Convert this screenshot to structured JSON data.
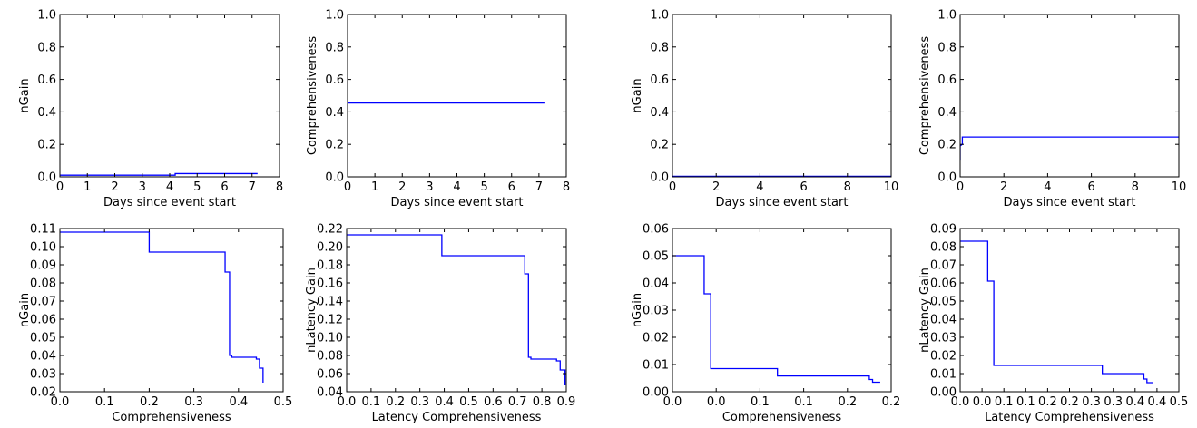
{
  "colors": {
    "series": "#0000ff",
    "axes": "#000000",
    "background": "#ffffff"
  },
  "chart_data": [
    {
      "type": "line",
      "xlabel": "Days since event start",
      "ylabel": "nGain",
      "xlim": [
        0,
        8
      ],
      "ylim": [
        0,
        1.0
      ],
      "xticks": [
        0,
        1,
        2,
        3,
        4,
        5,
        6,
        7,
        8
      ],
      "xtick_labels": [
        "0",
        "1",
        "2",
        "3",
        "4",
        "5",
        "6",
        "7",
        "8"
      ],
      "yticks": [
        0,
        0.2,
        0.4,
        0.6,
        0.8,
        1.0
      ],
      "ytick_labels": [
        "0.0",
        "0.2",
        "0.4",
        "0.6",
        "0.8",
        "1.0"
      ],
      "grid": false,
      "series": [
        {
          "x": [
            0,
            4.2,
            4.2,
            7.2
          ],
          "y": [
            0.01,
            0.01,
            0.02,
            0.02
          ]
        }
      ]
    },
    {
      "type": "line",
      "xlabel": "Days since event start",
      "ylabel": "Comprehensiveness",
      "xlim": [
        0,
        8
      ],
      "ylim": [
        0,
        1.0
      ],
      "xticks": [
        0,
        1,
        2,
        3,
        4,
        5,
        6,
        7,
        8
      ],
      "xtick_labels": [
        "0",
        "1",
        "2",
        "3",
        "4",
        "5",
        "6",
        "7",
        "8"
      ],
      "yticks": [
        0,
        0.2,
        0.4,
        0.6,
        0.8,
        1.0
      ],
      "ytick_labels": [
        "0.0",
        "0.2",
        "0.4",
        "0.6",
        "0.8",
        "1.0"
      ],
      "grid": false,
      "series": [
        {
          "x": [
            0,
            0,
            0.02,
            7.2
          ],
          "y": [
            0.2,
            0.45,
            0.455,
            0.455
          ]
        }
      ]
    },
    {
      "type": "line",
      "xlabel": "Days since event start",
      "ylabel": "nGain",
      "xlim": [
        0,
        10
      ],
      "ylim": [
        0,
        1.0
      ],
      "xticks": [
        0,
        2,
        4,
        6,
        8,
        10
      ],
      "xtick_labels": [
        "0",
        "2",
        "4",
        "6",
        "8",
        "10"
      ],
      "yticks": [
        0,
        0.2,
        0.4,
        0.6,
        0.8,
        1.0
      ],
      "ytick_labels": [
        "0.0",
        "0.2",
        "0.4",
        "0.6",
        "0.8",
        "1.0"
      ],
      "grid": false,
      "series": [
        {
          "x": [
            0,
            10
          ],
          "y": [
            0.003,
            0.003
          ]
        }
      ]
    },
    {
      "type": "line",
      "xlabel": "Days since event start",
      "ylabel": "Comprehensiveness",
      "xlim": [
        0,
        10
      ],
      "ylim": [
        0,
        1.0
      ],
      "xticks": [
        0,
        2,
        4,
        6,
        8,
        10
      ],
      "xtick_labels": [
        "0",
        "2",
        "4",
        "6",
        "8",
        "10"
      ],
      "yticks": [
        0,
        0.2,
        0.4,
        0.6,
        0.8,
        1.0
      ],
      "ytick_labels": [
        "0.0",
        "0.2",
        "0.4",
        "0.6",
        "0.8",
        "1.0"
      ],
      "grid": false,
      "series": [
        {
          "x": [
            0,
            0,
            0.1,
            0.1,
            10
          ],
          "y": [
            0.1,
            0.19,
            0.2,
            0.245,
            0.245
          ]
        }
      ]
    },
    {
      "type": "line",
      "xlabel": "Comprehensiveness",
      "ylabel": "nGain",
      "xlim": [
        0,
        0.5
      ],
      "ylim": [
        0.02,
        0.11
      ],
      "xticks": [
        0,
        0.1,
        0.2,
        0.3,
        0.4,
        0.5
      ],
      "xtick_labels": [
        "0.0",
        "0.1",
        "0.2",
        "0.3",
        "0.4",
        "0.5"
      ],
      "yticks": [
        0.02,
        0.03,
        0.04,
        0.05,
        0.06,
        0.07,
        0.08,
        0.09,
        0.1,
        0.11
      ],
      "ytick_labels": [
        "0.02",
        "0.03",
        "0.04",
        "0.05",
        "0.06",
        "0.07",
        "0.08",
        "0.09",
        "0.10",
        "0.11"
      ],
      "grid": false,
      "series": [
        {
          "x": [
            0,
            0.2,
            0.2,
            0.37,
            0.37,
            0.38,
            0.38,
            0.385,
            0.385,
            0.44,
            0.44,
            0.447,
            0.447,
            0.455,
            0.455
          ],
          "y": [
            0.108,
            0.108,
            0.097,
            0.097,
            0.086,
            0.086,
            0.04,
            0.04,
            0.039,
            0.039,
            0.038,
            0.038,
            0.033,
            0.033,
            0.025
          ]
        }
      ]
    },
    {
      "type": "line",
      "xlabel": "Latency Comprehensiveness",
      "ylabel": "nLatency Gain",
      "xlim": [
        0,
        0.9
      ],
      "ylim": [
        0.04,
        0.22
      ],
      "xticks": [
        0,
        0.1,
        0.2,
        0.3,
        0.4,
        0.5,
        0.6,
        0.7,
        0.8,
        0.9
      ],
      "xtick_labels": [
        "0.0",
        "0.1",
        "0.2",
        "0.3",
        "0.4",
        "0.5",
        "0.6",
        "0.7",
        "0.8",
        "0.9"
      ],
      "yticks": [
        0.04,
        0.06,
        0.08,
        0.1,
        0.12,
        0.14,
        0.16,
        0.18,
        0.2,
        0.22
      ],
      "ytick_labels": [
        "0.04",
        "0.06",
        "0.08",
        "0.10",
        "0.12",
        "0.14",
        "0.16",
        "0.18",
        "0.20",
        "0.22"
      ],
      "grid": false,
      "series": [
        {
          "x": [
            0,
            0.39,
            0.39,
            0.73,
            0.73,
            0.745,
            0.745,
            0.755,
            0.755,
            0.86,
            0.86,
            0.875,
            0.875,
            0.895,
            0.895
          ],
          "y": [
            0.213,
            0.213,
            0.19,
            0.19,
            0.17,
            0.17,
            0.078,
            0.078,
            0.076,
            0.076,
            0.074,
            0.074,
            0.064,
            0.064,
            0.047
          ]
        }
      ]
    },
    {
      "type": "line",
      "xlabel": "Comprehensiveness",
      "ylabel": "nGain",
      "xlim": [
        0,
        0.2
      ],
      "ylim": [
        0,
        0.06
      ],
      "xticks": [
        0,
        0.04,
        0.08,
        0.12,
        0.16,
        0.2
      ],
      "xtick_labels": [
        "0.0",
        "0.0",
        "0.1",
        "0.1",
        "0.2",
        "0.2"
      ],
      "yticks": [
        0,
        0.01,
        0.02,
        0.03,
        0.04,
        0.05,
        0.06
      ],
      "ytick_labels": [
        "0.00",
        "0.01",
        "0.02",
        "0.03",
        "0.04",
        "0.05",
        "0.06"
      ],
      "grid": false,
      "series": [
        {
          "x": [
            0,
            0.029,
            0.029,
            0.035,
            0.035,
            0.096,
            0.096,
            0.18,
            0.18,
            0.183,
            0.183,
            0.19
          ],
          "y": [
            0.05,
            0.05,
            0.036,
            0.036,
            0.0085,
            0.0085,
            0.0058,
            0.0058,
            0.0045,
            0.0045,
            0.0035,
            0.0035
          ]
        }
      ]
    },
    {
      "type": "line",
      "xlabel": "Latency Comprehensiveness",
      "ylabel": "nLatency Gain",
      "xlim": [
        0,
        0.5
      ],
      "ylim": [
        0,
        0.09
      ],
      "xticks": [
        0,
        0.05,
        0.1,
        0.15,
        0.2,
        0.25,
        0.3,
        0.35,
        0.4,
        0.45,
        0.5
      ],
      "xtick_labels": [
        "0.0",
        "0.0",
        "0.1",
        "0.1",
        "0.2",
        "0.2",
        "0.3",
        "0.3",
        "0.4",
        "0.4",
        "0.5"
      ],
      "yticks": [
        0,
        0.01,
        0.02,
        0.03,
        0.04,
        0.05,
        0.06,
        0.07,
        0.08,
        0.09
      ],
      "ytick_labels": [
        "0.00",
        "0.01",
        "0.02",
        "0.03",
        "0.04",
        "0.05",
        "0.06",
        "0.07",
        "0.08",
        "0.09"
      ],
      "grid": false,
      "series": [
        {
          "x": [
            0,
            0.063,
            0.063,
            0.077,
            0.077,
            0.325,
            0.325,
            0.42,
            0.42,
            0.427,
            0.427,
            0.44
          ],
          "y": [
            0.083,
            0.083,
            0.061,
            0.061,
            0.0145,
            0.0145,
            0.01,
            0.01,
            0.007,
            0.007,
            0.005,
            0.005
          ]
        }
      ]
    }
  ]
}
